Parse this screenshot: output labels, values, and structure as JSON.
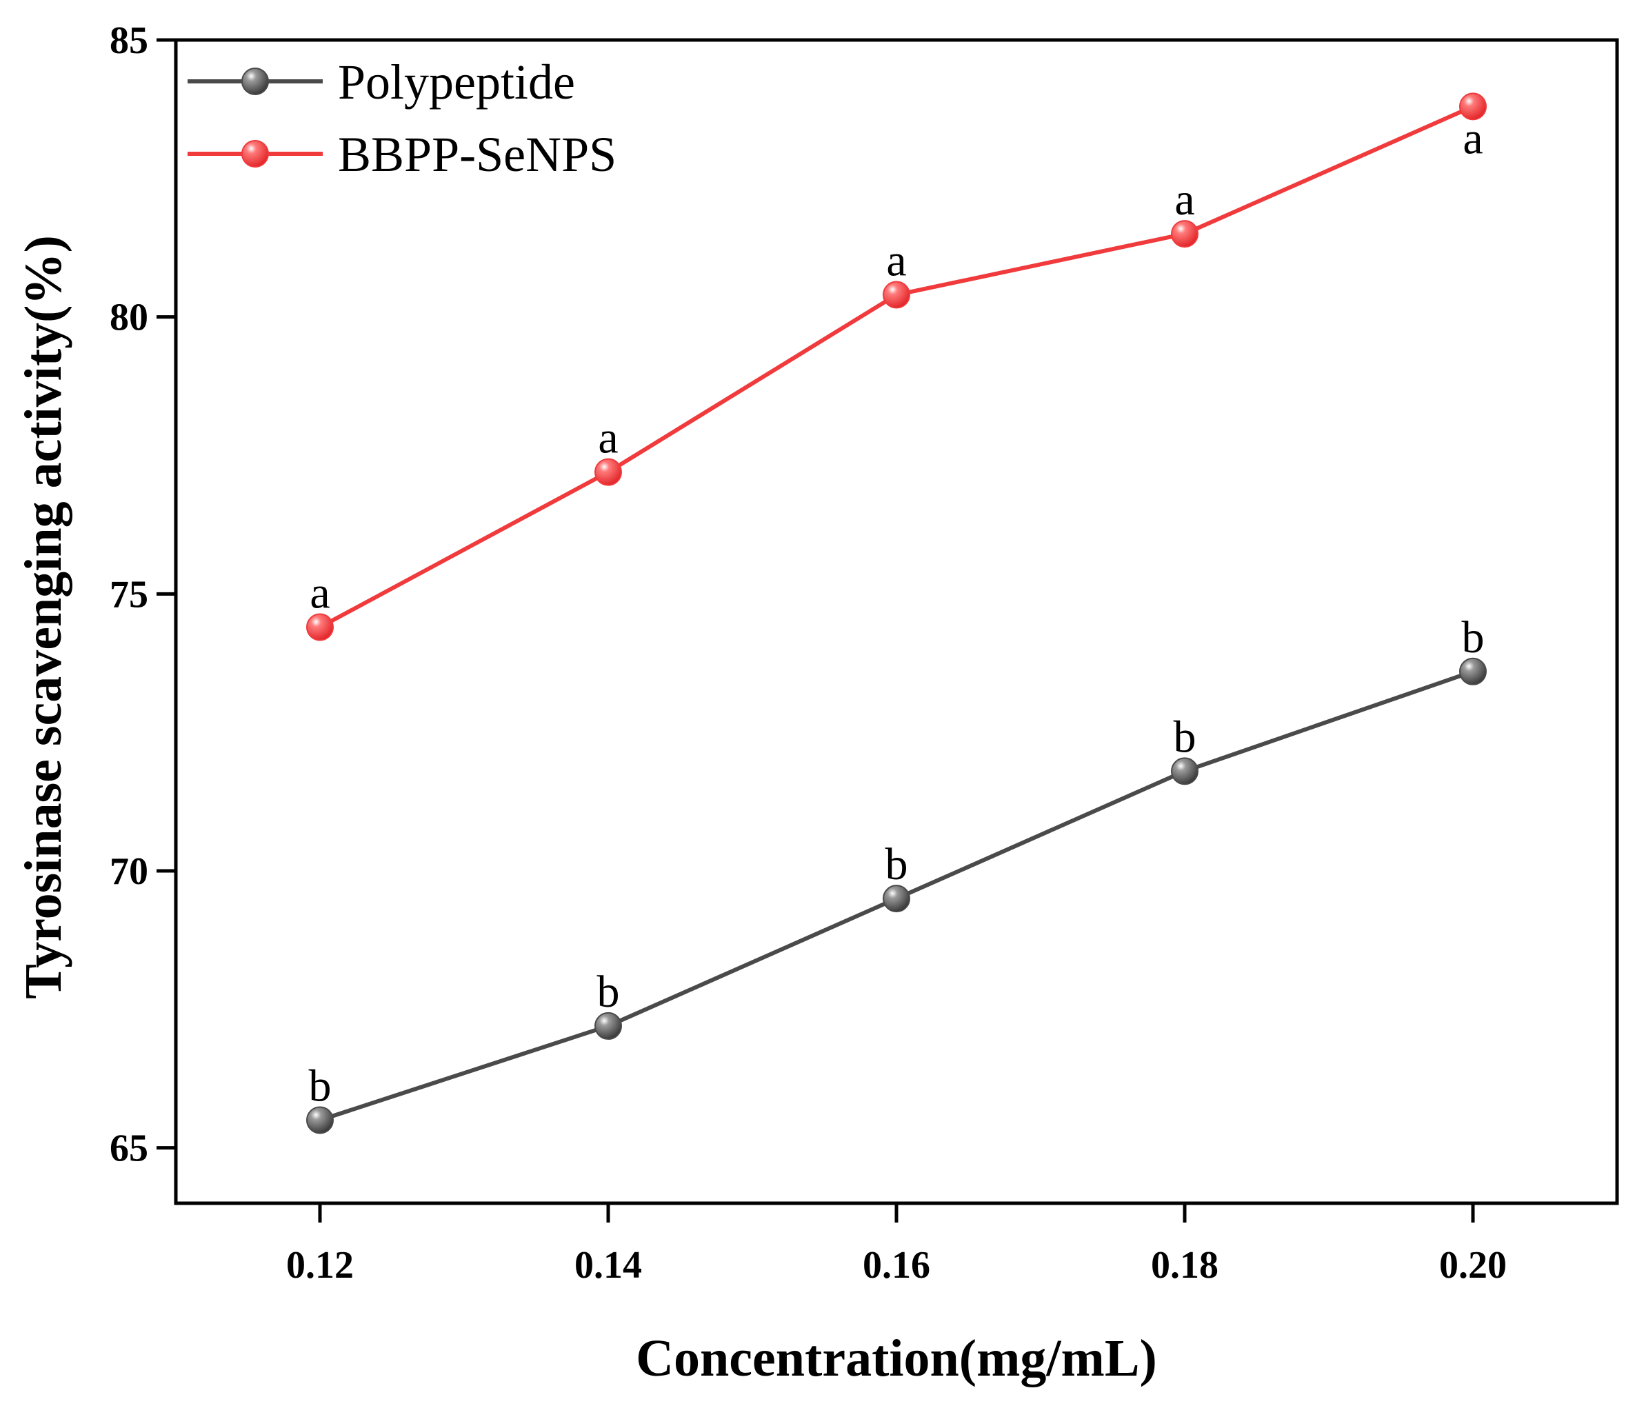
{
  "chart_data": {
    "type": "line",
    "title": "",
    "xlabel": "Concentration(mg/mL)",
    "ylabel": "Tyrosinase scavenging activity(%)",
    "x": [
      0.12,
      0.14,
      0.16,
      0.18,
      0.2
    ],
    "x_tick_labels": [
      "0.12",
      "0.14",
      "0.16",
      "0.18",
      "0.20"
    ],
    "xlim": [
      0.11,
      0.21
    ],
    "ylim": [
      64,
      85
    ],
    "y_ticks": [
      65,
      70,
      75,
      80,
      85
    ],
    "y_tick_labels": [
      "65",
      "70",
      "75",
      "80",
      "85"
    ],
    "grid": false,
    "legend_position": "top-left",
    "series": [
      {
        "name": "Polypeptide",
        "color": "#4a4a4a",
        "values": [
          65.5,
          67.2,
          69.5,
          71.8,
          73.6
        ],
        "annotations": [
          "b",
          "b",
          "b",
          "b",
          "b"
        ],
        "annotation_side": [
          "above",
          "above",
          "above",
          "above",
          "above"
        ]
      },
      {
        "name": "BBPP-SeNPS",
        "color": "#f03a3c",
        "values": [
          74.4,
          77.2,
          80.4,
          81.5,
          83.8
        ],
        "annotations": [
          "a",
          "a",
          "a",
          "a",
          "a"
        ],
        "annotation_side": [
          "above",
          "above",
          "above",
          "above",
          "below"
        ]
      }
    ]
  }
}
